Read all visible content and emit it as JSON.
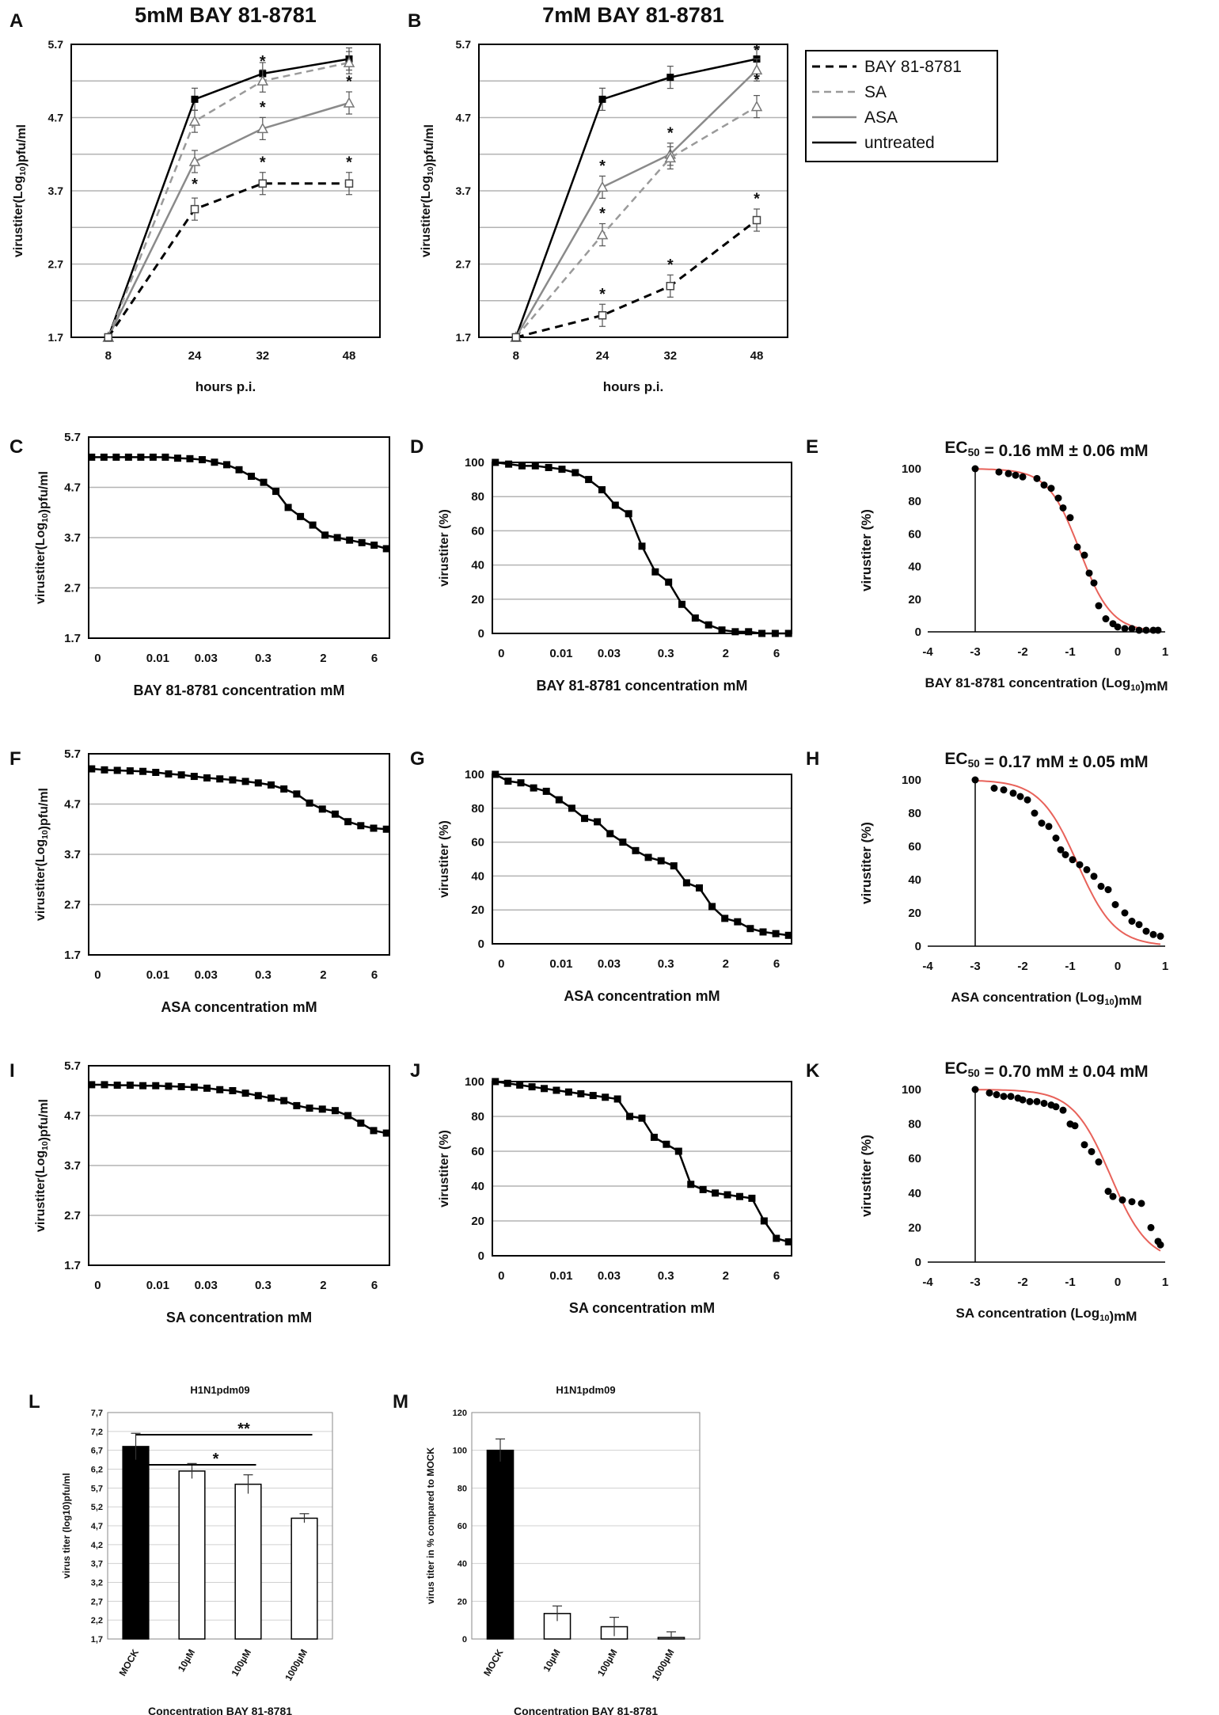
{
  "legend": {
    "entries": [
      {
        "label": "BAY 81-8781",
        "series": "bay"
      },
      {
        "label": "SA",
        "series": "sa"
      },
      {
        "label": "ASA",
        "series": "asa"
      },
      {
        "label": "untreated",
        "series": "untreated"
      }
    ]
  },
  "colors": {
    "fit": "#e8625a",
    "bar_mock": "#000000",
    "grid": "#9a9a9a",
    "asa": "#8a8a8a",
    "sa": "#9a9a9a"
  },
  "conc_ticks": [
    "0",
    "0.01",
    "0.03",
    "0.3",
    "2",
    "6"
  ],
  "log_ticks": [
    "-4",
    "-3",
    "-2",
    "-1",
    "0",
    "1"
  ],
  "chart_data": [
    {
      "panel": "A",
      "type": "line",
      "title": "5mM BAY 81-8781",
      "xlabel": "hours p.i.",
      "ylabel": "virustiter(Log10)pfu/ml",
      "categories": [
        "8",
        "24",
        "32",
        "48"
      ],
      "yticks": [
        "1.7",
        "2.7",
        "3.7",
        "4.7",
        "5.7"
      ],
      "ylim": [
        1.7,
        5.7
      ],
      "series": [
        {
          "name": "untreated",
          "values": [
            1.7,
            4.95,
            5.3,
            5.5
          ]
        },
        {
          "name": "SA",
          "values": [
            1.7,
            4.65,
            5.2,
            5.45
          ]
        },
        {
          "name": "ASA",
          "values": [
            1.7,
            4.1,
            4.55,
            4.9
          ]
        },
        {
          "name": "BAY 81-8781",
          "values": [
            1.7,
            3.45,
            3.8,
            3.8
          ]
        }
      ],
      "annotations": [
        "*",
        "*",
        "*",
        "*",
        "*",
        "*"
      ]
    },
    {
      "panel": "B",
      "type": "line",
      "title": "7mM BAY 81-8781",
      "xlabel": "hours p.i.",
      "ylabel": "virustiter(Log10)pfu/ml",
      "categories": [
        "8",
        "24",
        "32",
        "48"
      ],
      "yticks": [
        "1.7",
        "2.7",
        "3.7",
        "4.7",
        "5.7"
      ],
      "ylim": [
        1.7,
        5.7
      ],
      "series": [
        {
          "name": "untreated",
          "values": [
            1.7,
            4.95,
            5.25,
            5.5
          ]
        },
        {
          "name": "ASA",
          "values": [
            1.7,
            3.75,
            4.2,
            5.35
          ]
        },
        {
          "name": "SA",
          "values": [
            1.7,
            3.1,
            4.15,
            4.85
          ]
        },
        {
          "name": "BAY 81-8781",
          "values": [
            1.7,
            2.0,
            2.4,
            3.3
          ]
        }
      ],
      "annotations": [
        "*",
        "*",
        "*",
        "*",
        "*",
        "*",
        "*",
        "*"
      ]
    },
    {
      "panel": "C",
      "type": "line",
      "xlabel": "BAY 81-8781 concentration mM",
      "ylabel": "virustiter(Log10)pfu/ml",
      "yticks": [
        "1.7",
        "2.7",
        "3.7",
        "4.7",
        "5.7"
      ],
      "ylim": [
        1.7,
        5.7
      ],
      "values": [
        5.3,
        5.3,
        5.3,
        5.3,
        5.3,
        5.3,
        5.3,
        5.28,
        5.27,
        5.25,
        5.2,
        5.15,
        5.05,
        4.92,
        4.8,
        4.62,
        4.3,
        4.12,
        3.95,
        3.75,
        3.7,
        3.65,
        3.6,
        3.55,
        3.48
      ]
    },
    {
      "panel": "D",
      "type": "line",
      "xlabel": "BAY 81-8781 concentration mM",
      "ylabel": "virustiter (%)",
      "yticks": [
        "0",
        "20",
        "40",
        "60",
        "80",
        "100"
      ],
      "ylim": [
        0,
        100
      ],
      "values": [
        100,
        99,
        98,
        98,
        97,
        96,
        94,
        90,
        84,
        75,
        70,
        51,
        36,
        30,
        17,
        9,
        5,
        2,
        1,
        1,
        0,
        0,
        0
      ]
    },
    {
      "panel": "E",
      "type": "scatter",
      "title": "EC50 = 0.16 mM ± 0.06 mM",
      "xlabel": "BAY 81-8781 concentration (Log10)mM",
      "ylabel": "virustiter (%)",
      "xlim": [
        -4,
        1
      ],
      "ylim": [
        0,
        100
      ],
      "yticks": [
        "0",
        "20",
        "40",
        "60",
        "80",
        "100"
      ],
      "x": [
        -3.0,
        -2.5,
        -2.3,
        -2.15,
        -2.0,
        -1.7,
        -1.55,
        -1.4,
        -1.25,
        -1.15,
        -1.0,
        -0.85,
        -0.7,
        -0.6,
        -0.5,
        -0.4,
        -0.25,
        -0.1,
        0.0,
        0.15,
        0.3,
        0.45,
        0.6,
        0.75,
        0.85
      ],
      "y": [
        100,
        98,
        97,
        96,
        95,
        94,
        90,
        88,
        82,
        76,
        70,
        52,
        47,
        36,
        30,
        16,
        8,
        5,
        3,
        2,
        2,
        1,
        1,
        1,
        1
      ],
      "fit": {
        "ec50_log": -0.8,
        "hill": 1.3
      }
    },
    {
      "panel": "F",
      "type": "line",
      "xlabel": "ASA concentration mM",
      "ylabel": "virustiter(Log10)pfu/ml",
      "yticks": [
        "1.7",
        "2.7",
        "3.7",
        "4.7",
        "5.7"
      ],
      "ylim": [
        1.7,
        5.7
      ],
      "values": [
        5.4,
        5.38,
        5.37,
        5.36,
        5.35,
        5.33,
        5.3,
        5.28,
        5.25,
        5.22,
        5.2,
        5.18,
        5.15,
        5.12,
        5.08,
        5.0,
        4.9,
        4.72,
        4.6,
        4.5,
        4.35,
        4.27,
        4.22,
        4.2
      ]
    },
    {
      "panel": "G",
      "type": "line",
      "xlabel": "ASA concentration mM",
      "ylabel": "virustiter (%)",
      "yticks": [
        "0",
        "20",
        "40",
        "60",
        "80",
        "100"
      ],
      "ylim": [
        0,
        100
      ],
      "values": [
        100,
        96,
        95,
        92,
        90,
        85,
        80,
        74,
        72,
        65,
        60,
        55,
        51,
        49,
        46,
        36,
        33,
        22,
        15,
        13,
        9,
        7,
        6,
        5
      ]
    },
    {
      "panel": "H",
      "type": "scatter",
      "title": "EC50 = 0.17 mM ± 0.05 mM",
      "xlabel": "ASA concentration (Log10)mM",
      "ylabel": "virustiter (%)",
      "xlim": [
        -4,
        1
      ],
      "ylim": [
        0,
        100
      ],
      "yticks": [
        "0",
        "20",
        "40",
        "60",
        "80",
        "100"
      ],
      "x": [
        -3.0,
        -2.6,
        -2.4,
        -2.2,
        -2.05,
        -1.9,
        -1.75,
        -1.6,
        -1.45,
        -1.3,
        -1.2,
        -1.1,
        -0.95,
        -0.8,
        -0.65,
        -0.5,
        -0.35,
        -0.2,
        -0.05,
        0.15,
        0.3,
        0.45,
        0.6,
        0.75,
        0.9
      ],
      "y": [
        100,
        95,
        94,
        92,
        90,
        88,
        80,
        74,
        72,
        65,
        58,
        55,
        52,
        49,
        46,
        42,
        36,
        34,
        25,
        20,
        15,
        13,
        9,
        7,
        6
      ],
      "fit": {
        "ec50_log": -0.85,
        "hill": 1.1
      }
    },
    {
      "panel": "I",
      "type": "line",
      "xlabel": "SA concentration mM",
      "ylabel": "virustiter(Log10)pfu/ml",
      "yticks": [
        "1.7",
        "2.7",
        "3.7",
        "4.7",
        "5.7"
      ],
      "ylim": [
        1.7,
        5.7
      ],
      "values": [
        5.32,
        5.32,
        5.31,
        5.31,
        5.3,
        5.3,
        5.29,
        5.28,
        5.27,
        5.25,
        5.22,
        5.2,
        5.15,
        5.1,
        5.05,
        5.0,
        4.9,
        4.85,
        4.83,
        4.8,
        4.7,
        4.55,
        4.4,
        4.35
      ]
    },
    {
      "panel": "J",
      "type": "line",
      "xlabel": "SA concentration mM",
      "ylabel": "virustiter (%)",
      "yticks": [
        "0",
        "20",
        "40",
        "60",
        "80",
        "100"
      ],
      "ylim": [
        0,
        100
      ],
      "values": [
        100,
        99,
        98,
        97,
        96,
        95,
        94,
        93,
        92,
        91,
        90,
        80,
        79,
        68,
        64,
        60,
        41,
        38,
        36,
        35,
        34,
        33,
        20,
        10,
        8
      ]
    },
    {
      "panel": "K",
      "type": "scatter",
      "title": "EC50 = 0.70 mM ± 0.04 mM",
      "xlabel": "SA concentration (Log10)mM",
      "ylabel": "virustiter (%)",
      "xlim": [
        -4,
        1
      ],
      "ylim": [
        0,
        100
      ],
      "yticks": [
        "0",
        "20",
        "40",
        "60",
        "80",
        "100"
      ],
      "x": [
        -3.0,
        -2.7,
        -2.55,
        -2.4,
        -2.25,
        -2.1,
        -2.0,
        -1.85,
        -1.7,
        -1.55,
        -1.4,
        -1.3,
        -1.15,
        -1.0,
        -0.9,
        -0.7,
        -0.55,
        -0.4,
        -0.2,
        -0.1,
        0.1,
        0.3,
        0.5,
        0.7,
        0.85,
        0.9
      ],
      "y": [
        100,
        98,
        97,
        96,
        96,
        95,
        94,
        93,
        93,
        92,
        91,
        90,
        88,
        80,
        79,
        68,
        64,
        58,
        41,
        38,
        36,
        35,
        34,
        20,
        12,
        10
      ],
      "fit": {
        "ec50_log": -0.15,
        "hill": 1.1
      }
    },
    {
      "panel": "L",
      "type": "bar",
      "title": "H1N1pdm09",
      "xlabel": "Concentration BAY 81-8781",
      "ylabel": "virus titer (log10)pfu/ml",
      "categories": [
        "MOCK",
        "10µM",
        "100µM",
        "1000µM"
      ],
      "values": [
        6.8,
        6.15,
        5.8,
        4.9
      ],
      "errors": [
        0.35,
        0.2,
        0.25,
        0.12
      ],
      "yticks": [
        "1,7",
        "2,2",
        "2,7",
        "3,2",
        "3,7",
        "4,2",
        "4,7",
        "5,2",
        "5,7",
        "6,2",
        "6,7",
        "7,2",
        "7,7"
      ],
      "ylim": [
        1.7,
        7.7
      ],
      "significance": [
        {
          "from": "MOCK",
          "to": "1000µM",
          "label": "**"
        },
        {
          "from": "MOCK",
          "to": "100µM",
          "label": "*"
        }
      ]
    },
    {
      "panel": "M",
      "type": "bar",
      "title": "H1N1pdm09",
      "xlabel": "Concentration BAY 81-8781",
      "ylabel": "virus titer in % compared to MOCK",
      "categories": [
        "MOCK",
        "10µM",
        "100µM",
        "1000µM"
      ],
      "values": [
        100,
        13.5,
        6.5,
        0.8
      ],
      "errors": [
        6,
        4,
        5,
        3
      ],
      "yticks": [
        "0",
        "20",
        "40",
        "60",
        "80",
        "100",
        "120"
      ],
      "ylim": [
        0,
        120
      ]
    }
  ]
}
